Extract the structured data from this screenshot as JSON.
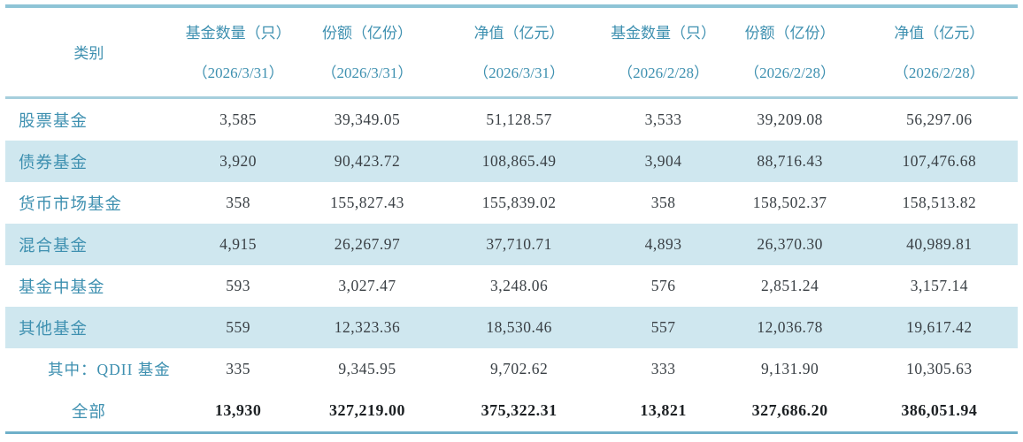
{
  "colors": {
    "accent_teal": "#3e90b0",
    "stripe": "#cfe7ef",
    "border_top": "#8ec4d6",
    "border_header": "#a6cfdd",
    "border_bottom": "#6fb0c9",
    "number_text": "#3a4045",
    "total_number_text": "#1d2124"
  },
  "table": {
    "columns": [
      {
        "label": "类别",
        "sublabel": ""
      },
      {
        "label": "基金数量（只）",
        "sublabel": "（2026/3/31）"
      },
      {
        "label": "份额（亿份）",
        "sublabel": "（2026/3/31）"
      },
      {
        "label": "净值（亿元）",
        "sublabel": "（2026/3/31）"
      },
      {
        "label": "基金数量（只）",
        "sublabel": "（2026/2/28）"
      },
      {
        "label": "份额（亿份）",
        "sublabel": "（2026/2/28）"
      },
      {
        "label": "净值（亿元）",
        "sublabel": "（2026/2/28）"
      }
    ],
    "rows": [
      {
        "category": "股票基金",
        "values": [
          "3,585",
          "39,349.05",
          "51,128.57",
          "3,533",
          "39,209.08",
          "56,297.06"
        ],
        "striped": false,
        "indent": false,
        "total": false
      },
      {
        "category": "债券基金",
        "values": [
          "3,920",
          "90,423.72",
          "108,865.49",
          "3,904",
          "88,716.43",
          "107,476.68"
        ],
        "striped": true,
        "indent": false,
        "total": false
      },
      {
        "category": "货币市场基金",
        "values": [
          "358",
          "155,827.43",
          "155,839.02",
          "358",
          "158,502.37",
          "158,513.82"
        ],
        "striped": false,
        "indent": false,
        "total": false
      },
      {
        "category": "混合基金",
        "values": [
          "4,915",
          "26,267.97",
          "37,710.71",
          "4,893",
          "26,370.30",
          "40,989.81"
        ],
        "striped": true,
        "indent": false,
        "total": false
      },
      {
        "category": "基金中基金",
        "values": [
          "593",
          "3,027.47",
          "3,248.06",
          "576",
          "2,851.24",
          "3,157.14"
        ],
        "striped": false,
        "indent": false,
        "total": false
      },
      {
        "category": "其他基金",
        "values": [
          "559",
          "12,323.36",
          "18,530.46",
          "557",
          "12,036.78",
          "19,617.42"
        ],
        "striped": true,
        "indent": false,
        "total": false
      },
      {
        "category": "其中：QDII 基金",
        "values": [
          "335",
          "9,345.95",
          "9,702.62",
          "333",
          "9,131.90",
          "10,305.63"
        ],
        "striped": false,
        "indent": true,
        "total": false
      },
      {
        "category": "全部",
        "values": [
          "13,930",
          "327,219.00",
          "375,322.31",
          "13,821",
          "327,686.20",
          "386,051.94"
        ],
        "striped": false,
        "indent": false,
        "total": true
      }
    ]
  }
}
